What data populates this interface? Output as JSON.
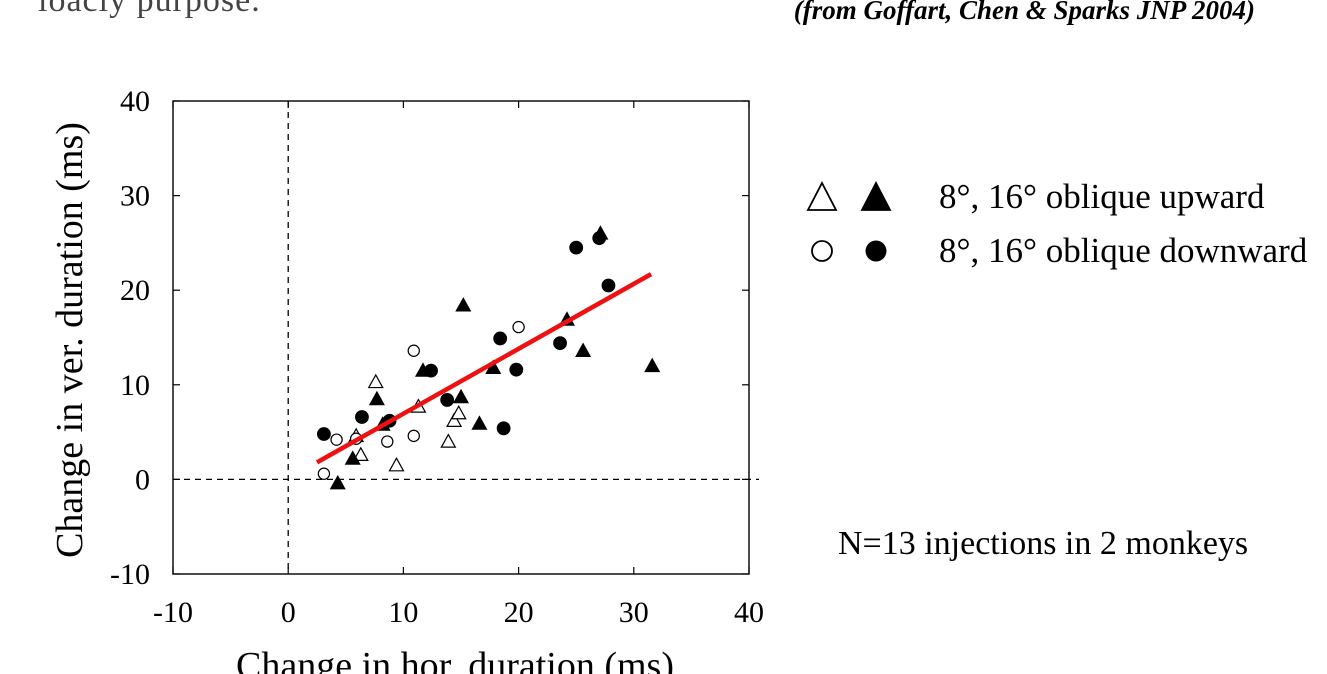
{
  "header": {
    "top_left_text": "loacly purpose.",
    "citation": "(from Goffart, Chen & Sparks JNP 2004)"
  },
  "legend": {
    "items": [
      {
        "open_symbol": "triangle",
        "filled_symbol": "triangle",
        "label": "8°, 16° oblique upward"
      },
      {
        "open_symbol": "circle",
        "filled_symbol": "circle",
        "label": "8°, 16° oblique downward"
      }
    ]
  },
  "note": "N=13 injections in 2 monkeys",
  "chart_data": {
    "type": "scatter",
    "xlabel": "Change in hor. duration (ms)",
    "ylabel": "Change in ver. duration (ms)",
    "xlim": [
      -10,
      40
    ],
    "ylim": [
      -10,
      40
    ],
    "xticks": [
      -10,
      0,
      10,
      20,
      30,
      40
    ],
    "yticks": [
      -10,
      0,
      10,
      20,
      30,
      40
    ],
    "reference_lines": {
      "x": 0,
      "y": 0,
      "style": "dashed"
    },
    "fit_line": {
      "color": "#ee1111",
      "x": [
        2.5,
        31.5
      ],
      "y": [
        1.8,
        21.7
      ]
    },
    "series": [
      {
        "marker": "triangle-open",
        "points": [
          [
            5.9,
            4.6
          ],
          [
            6.3,
            2.6
          ],
          [
            7.6,
            10.3
          ],
          [
            9.4,
            1.5
          ],
          [
            11.3,
            7.7
          ],
          [
            13.9,
            4.0
          ],
          [
            14.4,
            6.2
          ],
          [
            14.8,
            7.0
          ]
        ]
      },
      {
        "marker": "triangle-filled",
        "points": [
          [
            4.3,
            -0.4
          ],
          [
            5.6,
            2.2
          ],
          [
            7.7,
            8.5
          ],
          [
            8.2,
            5.8
          ],
          [
            11.7,
            11.5
          ],
          [
            15.0,
            8.7
          ],
          [
            15.2,
            18.4
          ],
          [
            16.6,
            5.9
          ],
          [
            17.8,
            11.8
          ],
          [
            24.2,
            16.9
          ],
          [
            25.6,
            13.6
          ],
          [
            27.1,
            26.0
          ],
          [
            31.6,
            12.0
          ]
        ]
      },
      {
        "marker": "circle-open",
        "points": [
          [
            3.1,
            0.6
          ],
          [
            4.2,
            4.2
          ],
          [
            5.9,
            4.3
          ],
          [
            8.6,
            4.0
          ],
          [
            10.9,
            4.6
          ],
          [
            10.9,
            13.6
          ],
          [
            20.0,
            16.1
          ]
        ]
      },
      {
        "marker": "circle-filled",
        "points": [
          [
            3.1,
            4.8
          ],
          [
            6.4,
            6.6
          ],
          [
            8.8,
            6.2
          ],
          [
            12.4,
            11.5
          ],
          [
            13.8,
            8.4
          ],
          [
            18.4,
            14.9
          ],
          [
            18.7,
            5.4
          ],
          [
            19.8,
            11.6
          ],
          [
            23.6,
            14.4
          ],
          [
            25.0,
            24.5
          ],
          [
            27.0,
            25.5
          ],
          [
            27.8,
            20.5
          ]
        ]
      }
    ]
  }
}
